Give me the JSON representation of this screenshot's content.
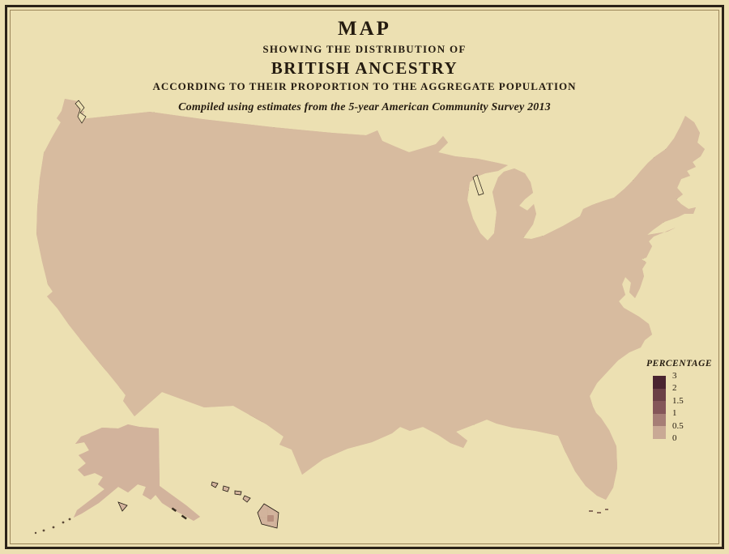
{
  "title": {
    "l1": "MAP",
    "l2": "SHOWING THE DISTRIBUTION OF",
    "l3": "BRITISH ANCESTRY",
    "l4": "ACCORDING TO THEIR PROPORTION TO THE AGGREGATE POPULATION",
    "l5": "Compiled using estimates from the 5-year American Community Survey 2013"
  },
  "legend": {
    "title": "PERCENTAGE",
    "boundaries": [
      "3",
      "2",
      "1.5",
      "1",
      "0.5",
      "0"
    ],
    "colors": [
      "#4a2430",
      "#6b4046",
      "#845659",
      "#a67e76",
      "#c9a995"
    ]
  },
  "palette": {
    "background": "#ece0b2",
    "map_base": "#d7bb9f",
    "alaska_base": "#d2b39c",
    "state_line": "#241a10",
    "nation_outline": "#1f1710",
    "frame_dark": "#2b2318",
    "frame_light": "#9b8659",
    "ink": "#241b10"
  }
}
